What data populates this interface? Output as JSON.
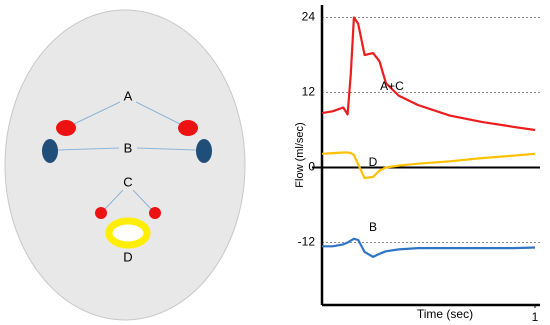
{
  "diagram": {
    "labels": [
      "A",
      "B",
      "C",
      "D"
    ]
  },
  "chart_data": {
    "type": "line",
    "x_label": "Time (sec)",
    "y_label": "Flow (ml/sec)",
    "x": [
      0,
      0.05,
      0.1,
      0.12,
      0.135,
      0.15,
      0.17,
      0.2,
      0.24,
      0.27,
      0.3,
      0.36,
      0.45,
      0.6,
      0.75,
      0.9,
      1
    ],
    "series": [
      {
        "name": "A+C",
        "color": "#ee1c1c",
        "values": [
          8.7,
          9,
          9.6,
          8.5,
          15,
          24,
          23,
          18,
          18.3,
          17,
          13.5,
          11.5,
          10,
          8.3,
          7.3,
          6.5,
          6
        ]
      },
      {
        "name": "D",
        "color": "#ffc000",
        "values": [
          2.2,
          2.3,
          2.4,
          2.4,
          2.3,
          2,
          0.5,
          -1.7,
          -1.5,
          -0.5,
          0,
          0.3,
          0.6,
          1,
          1.5,
          1.9,
          2.2
        ]
      },
      {
        "name": "B",
        "color": "#2e75c6",
        "values": [
          -12.6,
          -12.6,
          -12.3,
          -12,
          -11.7,
          -11.4,
          -11.6,
          -13.5,
          -14.3,
          -13.8,
          -13.4,
          -13.1,
          -12.9,
          -12.9,
          -12.9,
          -12.9,
          -12.8
        ]
      }
    ],
    "xlim": [
      0,
      1
    ],
    "xticks": [
      1
    ],
    "ylim": [
      -22,
      26
    ],
    "yticks": [
      -12,
      0,
      12,
      24
    ],
    "grid": true
  }
}
